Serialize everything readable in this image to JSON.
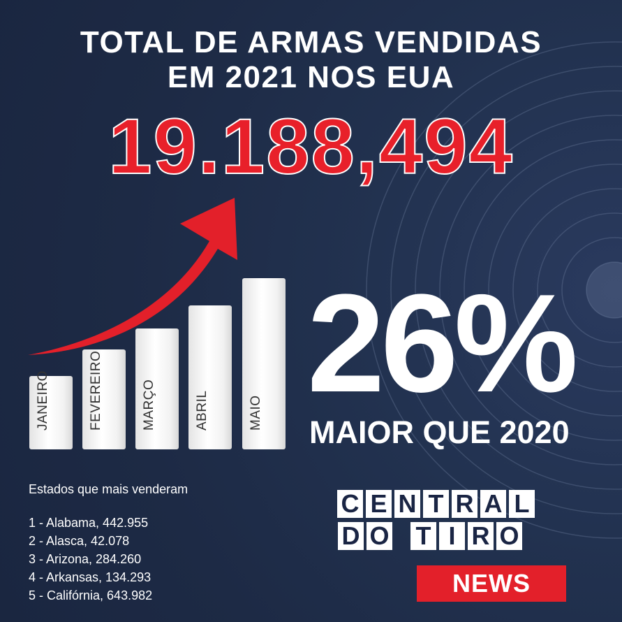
{
  "title": {
    "line1": "TOTAL DE ARMAS VENDIDAS",
    "line2": "EM 2021 NOS EUA"
  },
  "total_value": "19.188,494",
  "months": [
    {
      "label": "JANEIRO"
    },
    {
      "label": "FEVEREIRO"
    },
    {
      "label": "MARÇO"
    },
    {
      "label": "ABRIL"
    },
    {
      "label": "MAIO"
    }
  ],
  "growth": {
    "percent": "26%",
    "caption": "MAIOR QUE 2020"
  },
  "states": {
    "title": "Estados que mais venderam",
    "items": [
      "1 - Alabama, 442.955",
      "2 - Alasca, 42.078",
      "3 - Arizona, 284.260",
      "4 - Arkansas, 134.293",
      "5 - Califórnia, 643.982"
    ]
  },
  "logo": {
    "row1": [
      "C",
      "E",
      "N",
      "T",
      "R",
      "A",
      "L"
    ],
    "row2a": [
      "D",
      "O"
    ],
    "row2b": [
      "T",
      "I",
      "R",
      "O"
    ],
    "badge": "NEWS"
  },
  "colors": {
    "background": "#1f2c48",
    "accent_red": "#e3202a",
    "text": "#ffffff",
    "logo_text": "#1a2544"
  },
  "icons": {
    "arrow": "trend-up-arrow-icon",
    "background": "target-rings"
  }
}
